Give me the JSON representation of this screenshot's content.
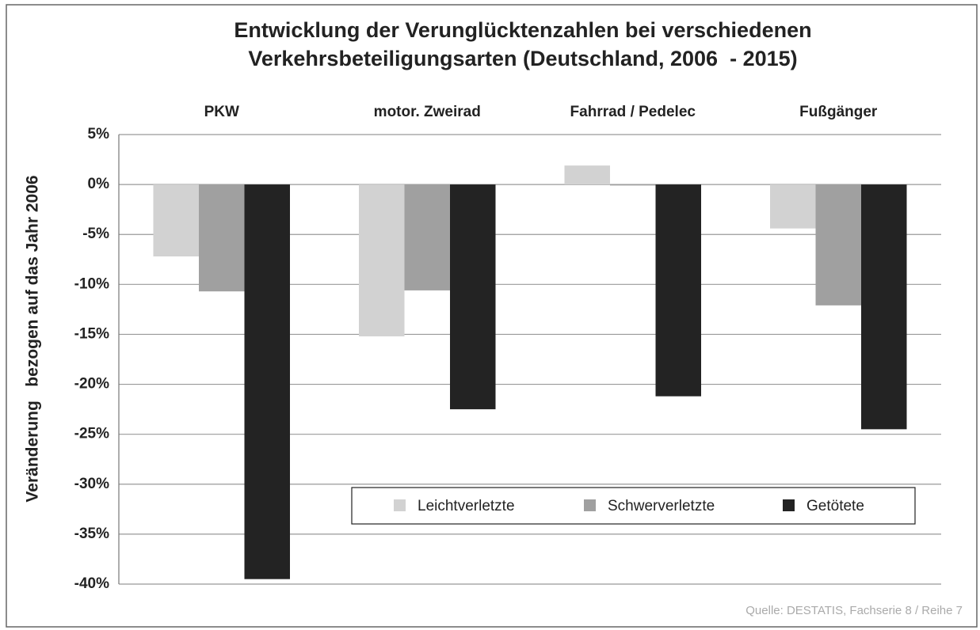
{
  "chart_data": {
    "type": "bar",
    "title": "Entwicklung der Verunglücktenzahlen bei verschiedenen",
    "subtitle": "Verkehrsbeteiligungsarten (Deutschland, 2006  - 2015)",
    "y_label": "Veränderung   bezogen auf das Jahr 2006",
    "source": "Quelle: DESTATIS, Fachserie 8 / Reihe 7",
    "categories": [
      "PKW",
      "motor. Zweirad",
      "Fahrrad / Pedelec",
      "Fußgänger"
    ],
    "series": [
      {
        "name": "Leichtverletzte",
        "color": "#d2d2d2",
        "values": [
          -7.2,
          -15.2,
          1.9,
          -4.4
        ]
      },
      {
        "name": "Schwerverletzte",
        "color": "#a0a0a0",
        "values": [
          -10.7,
          -10.6,
          -0.1,
          -12.1
        ]
      },
      {
        "name": "Getötete",
        "color": "#232323",
        "values": [
          -39.5,
          -22.5,
          -21.2,
          -24.5
        ]
      }
    ],
    "ylim": [
      -40,
      5
    ],
    "yticks": [
      {
        "value": 5,
        "label": "5%"
      },
      {
        "value": 0,
        "label": "0%"
      },
      {
        "value": -5,
        "label": "-5%"
      },
      {
        "value": -10,
        "label": "-10%"
      },
      {
        "value": -15,
        "label": "-15%"
      },
      {
        "value": -20,
        "label": "-20%"
      },
      {
        "value": -25,
        "label": "-25%"
      },
      {
        "value": -30,
        "label": "-30%"
      },
      {
        "value": -35,
        "label": "-35%"
      },
      {
        "value": -40,
        "label": "-40%"
      }
    ],
    "grid": true
  }
}
